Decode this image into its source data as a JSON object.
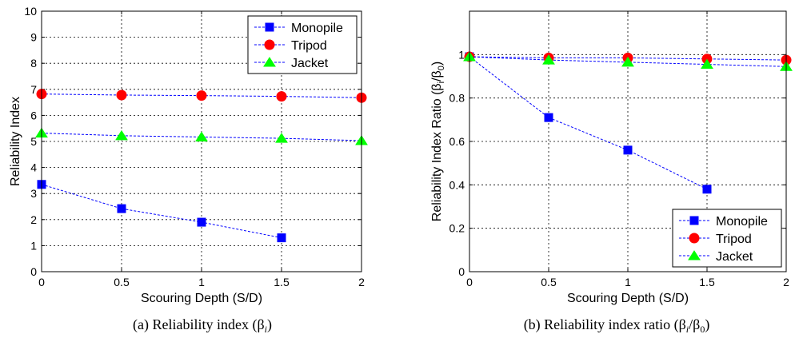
{
  "chart_data": [
    {
      "type": "line",
      "panel": "a",
      "caption": "(a)  Reliability  index  (β",
      "caption_sub": "i",
      "caption_tail": ")",
      "xlabel": "Scouring Depth (S/D)",
      "ylabel": "Reliability Index",
      "xlim": [
        0,
        2
      ],
      "ylim": [
        0,
        10
      ],
      "xticks": [
        0,
        0.5,
        1,
        1.5,
        2
      ],
      "xtick_labels": [
        "0",
        "0.5",
        "1",
        "1.5",
        "2"
      ],
      "yticks": [
        0,
        1,
        2,
        3,
        4,
        5,
        6,
        7,
        8,
        9,
        10
      ],
      "ytick_labels": [
        "0",
        "1",
        "2",
        "3",
        "4",
        "5",
        "6",
        "7",
        "8",
        "9",
        "10"
      ],
      "grid": true,
      "legend_position": "top-right",
      "series": [
        {
          "name": "Monopile",
          "color": "#0000ff",
          "marker": "square",
          "x": [
            0,
            0.5,
            1,
            1.5
          ],
          "y": [
            3.35,
            2.42,
            1.9,
            1.3
          ]
        },
        {
          "name": "Tripod",
          "color": "#ff0000",
          "marker": "circle",
          "x": [
            0,
            0.5,
            1,
            1.5,
            2
          ],
          "y": [
            6.82,
            6.78,
            6.76,
            6.73,
            6.68
          ]
        },
        {
          "name": "Jacket",
          "color": "#00ff00",
          "marker": "triangle",
          "x": [
            0,
            0.5,
            1,
            1.5,
            2
          ],
          "y": [
            5.32,
            5.22,
            5.17,
            5.12,
            5.03
          ]
        }
      ]
    },
    {
      "type": "line",
      "panel": "b",
      "caption": "(b)  Reliability  index  ratio  (β",
      "caption_sub": "i",
      "caption_mid": "/β",
      "caption_sub2": "0",
      "caption_tail": ")",
      "xlabel": "Scouring Depth (S/D)",
      "ylabel": "Reliability Index Ratio (β",
      "ylabel_sub": "i",
      "ylabel_mid": "/β",
      "ylabel_sub2": "0",
      "ylabel_tail": ")",
      "xlim": [
        0,
        2
      ],
      "ylim": [
        0,
        1.2
      ],
      "xticks": [
        0,
        0.5,
        1,
        1.5,
        2
      ],
      "xtick_labels": [
        "0",
        "0.5",
        "1",
        "1.5",
        "2"
      ],
      "yticks": [
        0,
        0.2,
        0.4,
        0.6,
        0.8,
        1
      ],
      "ytick_labels": [
        "0",
        "0.2",
        "0.4",
        "0.6",
        "0.8",
        "1"
      ],
      "grid": true,
      "legend_position": "bottom-right",
      "series": [
        {
          "name": "Monopile",
          "color": "#0000ff",
          "marker": "square",
          "x": [
            0,
            0.5,
            1,
            1.5
          ],
          "y": [
            0.99,
            0.71,
            0.56,
            0.38
          ]
        },
        {
          "name": "Tripod",
          "color": "#ff0000",
          "marker": "circle",
          "x": [
            0,
            0.5,
            1,
            1.5,
            2
          ],
          "y": [
            0.99,
            0.985,
            0.985,
            0.98,
            0.975
          ]
        },
        {
          "name": "Jacket",
          "color": "#00ff00",
          "marker": "triangle",
          "x": [
            0,
            0.5,
            1,
            1.5,
            2
          ],
          "y": [
            0.99,
            0.975,
            0.965,
            0.955,
            0.945
          ]
        }
      ]
    }
  ]
}
